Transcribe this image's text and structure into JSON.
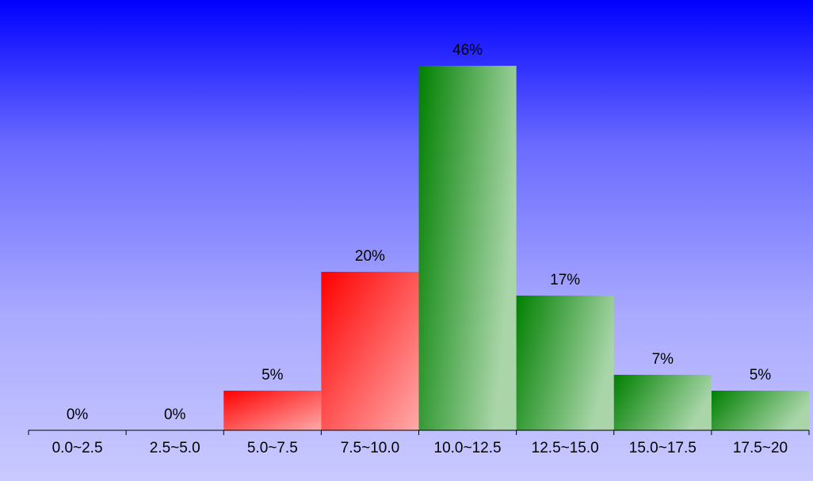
{
  "chart_data": {
    "type": "bar",
    "categories": [
      "0.0~2.5",
      "2.5~5.0",
      "5.0~7.5",
      "7.5~10.0",
      "10.0~12.5",
      "12.5~15.0",
      "15.0~17.5",
      "17.5~20"
    ],
    "values": [
      0,
      0,
      5,
      20,
      46,
      17,
      7,
      5
    ],
    "value_labels": [
      "0%",
      "0%",
      "5%",
      "20%",
      "46%",
      "17%",
      "7%",
      "5%"
    ],
    "bar_colors": [
      "#008000",
      "#008000",
      "#ff0000",
      "#ff0000",
      "#008000",
      "#008000",
      "#008000",
      "#008000"
    ],
    "ylim": [
      0,
      46
    ],
    "grid": false,
    "legend": "none"
  },
  "colors": {
    "background_top": "#0000ff",
    "background_bottom": "#c9c9ff",
    "red_bar": "#ff0000",
    "green_bar": "#008000",
    "bar_highlight": "#a9d5a9"
  }
}
